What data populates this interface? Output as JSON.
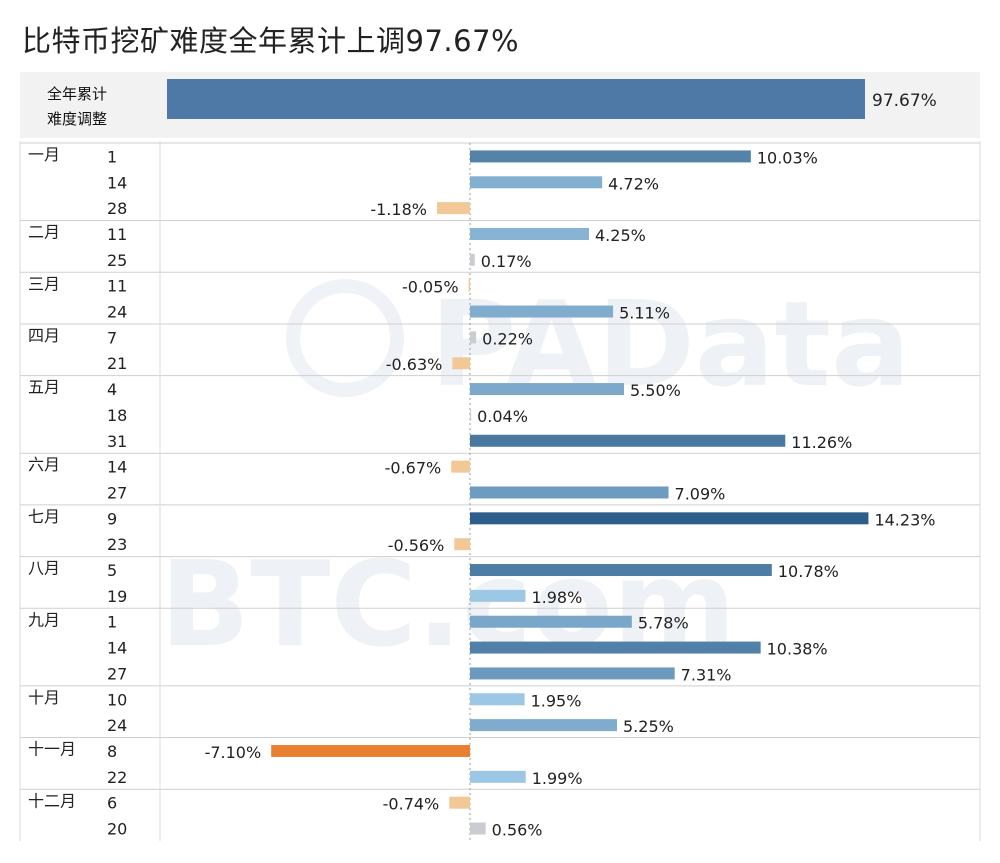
{
  "title": "比特币挖矿难度全年累计上调97.67%",
  "total": {
    "label_line1": "全年累计",
    "label_line2": "难度调整",
    "value": 97.67,
    "value_label": "97.67%",
    "color": "#4e79a7"
  },
  "watermark": {
    "text1": "PAData",
    "text2": "BTC.com"
  },
  "colors": {
    "positive_scale": [
      "#a0cbe8",
      "#2c5d8a"
    ],
    "small_positive": "#c9cdd1",
    "negative_small": "#f1c896",
    "negative_large": "#e8802f"
  },
  "chart_data": {
    "type": "bar",
    "orientation": "horizontal",
    "x_range": [
      -10,
      15
    ],
    "groups": [
      {
        "month": "一月",
        "days": [
          "1",
          "14",
          "28"
        ],
        "values": [
          10.03,
          4.72,
          -1.18
        ],
        "labels": [
          "10.03%",
          "4.72%",
          "-1.18%"
        ]
      },
      {
        "month": "二月",
        "days": [
          "11",
          "25"
        ],
        "values": [
          4.25,
          0.17
        ],
        "labels": [
          "4.25%",
          "0.17%"
        ]
      },
      {
        "month": "三月",
        "days": [
          "11",
          "24"
        ],
        "values": [
          -0.05,
          5.11
        ],
        "labels": [
          "-0.05%",
          "5.11%"
        ]
      },
      {
        "month": "四月",
        "days": [
          "7",
          "21"
        ],
        "values": [
          0.22,
          -0.63
        ],
        "labels": [
          "0.22%",
          "-0.63%"
        ]
      },
      {
        "month": "五月",
        "days": [
          "4",
          "18",
          "31"
        ],
        "values": [
          5.5,
          0.04,
          11.26
        ],
        "labels": [
          "5.50%",
          "0.04%",
          "11.26%"
        ]
      },
      {
        "month": "六月",
        "days": [
          "14",
          "27"
        ],
        "values": [
          -0.67,
          7.09
        ],
        "labels": [
          "-0.67%",
          "7.09%"
        ]
      },
      {
        "month": "七月",
        "days": [
          "9",
          "23"
        ],
        "values": [
          14.23,
          -0.56
        ],
        "labels": [
          "14.23%",
          "-0.56%"
        ]
      },
      {
        "month": "八月",
        "days": [
          "5",
          "19"
        ],
        "values": [
          10.78,
          1.98
        ],
        "labels": [
          "10.78%",
          "1.98%"
        ]
      },
      {
        "month": "九月",
        "days": [
          "1",
          "14",
          "27"
        ],
        "values": [
          5.78,
          10.38,
          7.31
        ],
        "labels": [
          "5.78%",
          "10.38%",
          "7.31%"
        ]
      },
      {
        "month": "十月",
        "days": [
          "10",
          "24"
        ],
        "values": [
          1.95,
          5.25
        ],
        "labels": [
          "1.95%",
          "5.25%"
        ]
      },
      {
        "month": "十一月",
        "days": [
          "8",
          "22"
        ],
        "values": [
          -7.1,
          1.99
        ],
        "labels": [
          "-7.10%",
          "1.99%"
        ]
      },
      {
        "month": "十二月",
        "days": [
          "6",
          "20"
        ],
        "values": [
          -0.74,
          0.56
        ],
        "labels": [
          "-0.74%",
          "0.56%"
        ]
      }
    ]
  }
}
